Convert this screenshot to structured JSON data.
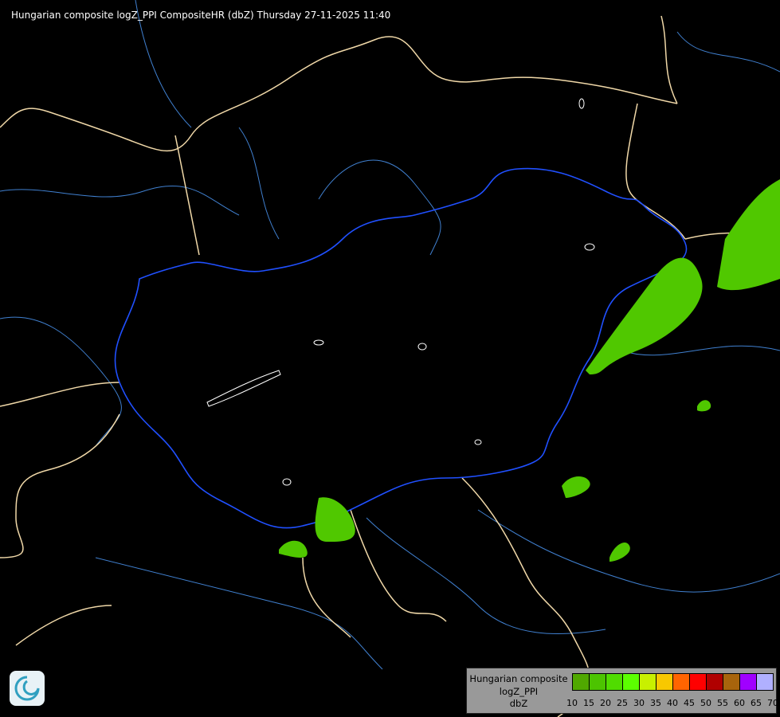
{
  "title": "Hungarian composite logZ_PPI CompositeHR (dbZ) Thursday 27-11-2025 11:40",
  "legend": {
    "lines": [
      "Hungarian composite",
      "logZ_PPI",
      "dbZ"
    ],
    "ticks": [
      "10",
      "15",
      "20",
      "25",
      "30",
      "35",
      "40",
      "45",
      "50",
      "55",
      "60",
      "65",
      "70"
    ],
    "colors": [
      "#50a800",
      "#4cc400",
      "#50dc00",
      "#5cff00",
      "#c8f000",
      "#f8c800",
      "#ff6400",
      "#ff0000",
      "#b00000",
      "#a8640c",
      "#a000ff",
      "#b0b0ff"
    ]
  },
  "map_colors": {
    "country_border": "#f0d8a8",
    "hungary_border": "#2050ff",
    "river": "#4080d0",
    "lake_outline": "#ffffff",
    "precip_light": "#50c800"
  },
  "logo": {
    "icon": "met-service-logo-icon"
  }
}
